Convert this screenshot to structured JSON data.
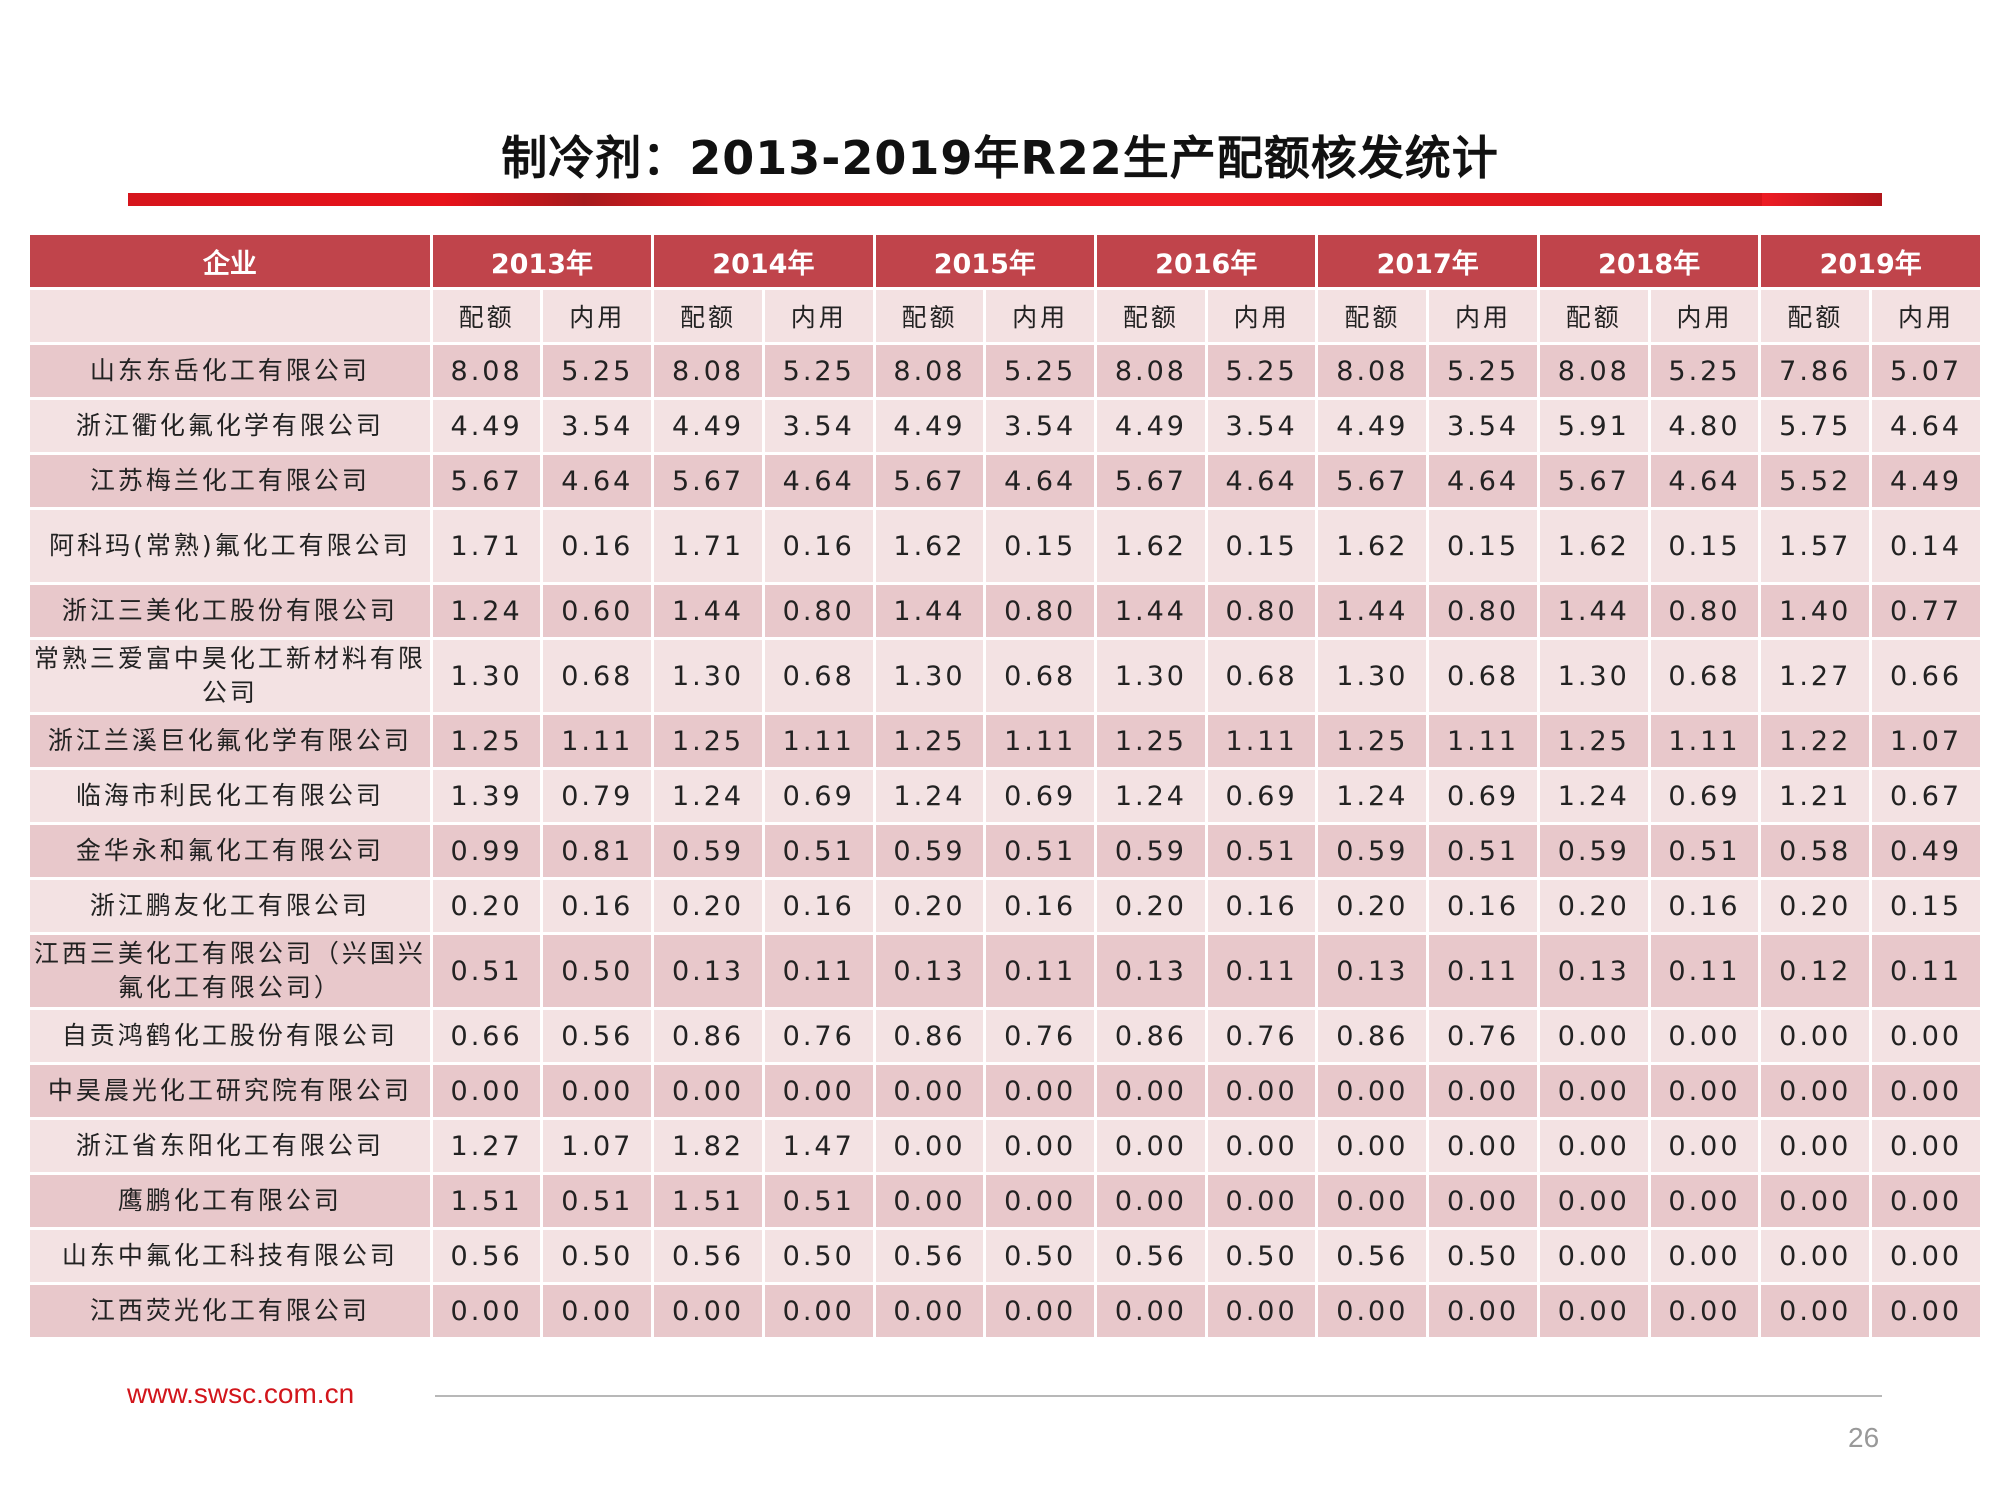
{
  "title": "制冷剂：2013-2019年R22生产配额核发统计",
  "table": {
    "company_header": "企业",
    "years": [
      "2013年",
      "2014年",
      "2015年",
      "2016年",
      "2017年",
      "2018年",
      "2019年"
    ],
    "sub_headers": [
      "配额",
      "内用"
    ],
    "rows": [
      {
        "company": "山东东岳化工有限公司",
        "values": [
          "8.08",
          "5.25",
          "8.08",
          "5.25",
          "8.08",
          "5.25",
          "8.08",
          "5.25",
          "8.08",
          "5.25",
          "8.08",
          "5.25",
          "7.86",
          "5.07"
        ]
      },
      {
        "company": "浙江衢化氟化学有限公司",
        "values": [
          "4.49",
          "3.54",
          "4.49",
          "3.54",
          "4.49",
          "3.54",
          "4.49",
          "3.54",
          "4.49",
          "3.54",
          "5.91",
          "4.80",
          "5.75",
          "4.64"
        ]
      },
      {
        "company": "江苏梅兰化工有限公司",
        "values": [
          "5.67",
          "4.64",
          "5.67",
          "4.64",
          "5.67",
          "4.64",
          "5.67",
          "4.64",
          "5.67",
          "4.64",
          "5.67",
          "4.64",
          "5.52",
          "4.49"
        ]
      },
      {
        "company": "阿科玛(常熟)氟化工有限公司",
        "values": [
          "1.71",
          "0.16",
          "1.71",
          "0.16",
          "1.62",
          "0.15",
          "1.62",
          "0.15",
          "1.62",
          "0.15",
          "1.62",
          "0.15",
          "1.57",
          "0.14"
        ]
      },
      {
        "company": "浙江三美化工股份有限公司",
        "values": [
          "1.24",
          "0.60",
          "1.44",
          "0.80",
          "1.44",
          "0.80",
          "1.44",
          "0.80",
          "1.44",
          "0.80",
          "1.44",
          "0.80",
          "1.40",
          "0.77"
        ]
      },
      {
        "company": "常熟三爱富中昊化工新材料有限公司",
        "values": [
          "1.30",
          "0.68",
          "1.30",
          "0.68",
          "1.30",
          "0.68",
          "1.30",
          "0.68",
          "1.30",
          "0.68",
          "1.30",
          "0.68",
          "1.27",
          "0.66"
        ]
      },
      {
        "company": "浙江兰溪巨化氟化学有限公司",
        "values": [
          "1.25",
          "1.11",
          "1.25",
          "1.11",
          "1.25",
          "1.11",
          "1.25",
          "1.11",
          "1.25",
          "1.11",
          "1.25",
          "1.11",
          "1.22",
          "1.07"
        ]
      },
      {
        "company": "临海市利民化工有限公司",
        "values": [
          "1.39",
          "0.79",
          "1.24",
          "0.69",
          "1.24",
          "0.69",
          "1.24",
          "0.69",
          "1.24",
          "0.69",
          "1.24",
          "0.69",
          "1.21",
          "0.67"
        ]
      },
      {
        "company": "金华永和氟化工有限公司",
        "values": [
          "0.99",
          "0.81",
          "0.59",
          "0.51",
          "0.59",
          "0.51",
          "0.59",
          "0.51",
          "0.59",
          "0.51",
          "0.59",
          "0.51",
          "0.58",
          "0.49"
        ]
      },
      {
        "company": "浙江鹏友化工有限公司",
        "values": [
          "0.20",
          "0.16",
          "0.20",
          "0.16",
          "0.20",
          "0.16",
          "0.20",
          "0.16",
          "0.20",
          "0.16",
          "0.20",
          "0.16",
          "0.20",
          "0.15"
        ]
      },
      {
        "company": "江西三美化工有限公司（兴国兴氟化工有限公司）",
        "values": [
          "0.51",
          "0.50",
          "0.13",
          "0.11",
          "0.13",
          "0.11",
          "0.13",
          "0.11",
          "0.13",
          "0.11",
          "0.13",
          "0.11",
          "0.12",
          "0.11"
        ]
      },
      {
        "company": "自贡鸿鹤化工股份有限公司",
        "values": [
          "0.66",
          "0.56",
          "0.86",
          "0.76",
          "0.86",
          "0.76",
          "0.86",
          "0.76",
          "0.86",
          "0.76",
          "0.00",
          "0.00",
          "0.00",
          "0.00"
        ]
      },
      {
        "company": "中昊晨光化工研究院有限公司",
        "values": [
          "0.00",
          "0.00",
          "0.00",
          "0.00",
          "0.00",
          "0.00",
          "0.00",
          "0.00",
          "0.00",
          "0.00",
          "0.00",
          "0.00",
          "0.00",
          "0.00"
        ]
      },
      {
        "company": "浙江省东阳化工有限公司",
        "values": [
          "1.27",
          "1.07",
          "1.82",
          "1.47",
          "0.00",
          "0.00",
          "0.00",
          "0.00",
          "0.00",
          "0.00",
          "0.00",
          "0.00",
          "0.00",
          "0.00"
        ]
      },
      {
        "company": "鹰鹏化工有限公司",
        "values": [
          "1.51",
          "0.51",
          "1.51",
          "0.51",
          "0.00",
          "0.00",
          "0.00",
          "0.00",
          "0.00",
          "0.00",
          "0.00",
          "0.00",
          "0.00",
          "0.00"
        ]
      },
      {
        "company": "山东中氟化工科技有限公司",
        "values": [
          "0.56",
          "0.50",
          "0.56",
          "0.50",
          "0.56",
          "0.50",
          "0.56",
          "0.50",
          "0.56",
          "0.50",
          "0.00",
          "0.00",
          "0.00",
          "0.00"
        ]
      },
      {
        "company": "江西荧光化工有限公司",
        "values": [
          "0.00",
          "0.00",
          "0.00",
          "0.00",
          "0.00",
          "0.00",
          "0.00",
          "0.00",
          "0.00",
          "0.00",
          "0.00",
          "0.00",
          "0.00",
          "0.00"
        ]
      }
    ]
  },
  "footer": {
    "url": "www.swsc.com.cn",
    "page_number": "26"
  },
  "colors": {
    "header_bg": "#c0444b",
    "row_dark": "#e8c8cb",
    "row_light": "#f3e2e3",
    "accent_red": "#ed1c24"
  }
}
